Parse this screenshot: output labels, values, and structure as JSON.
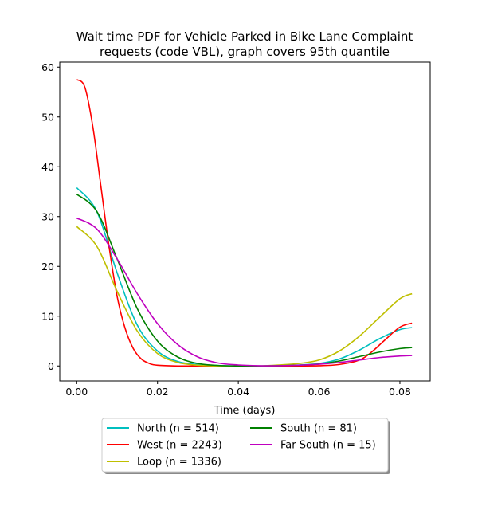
{
  "chart_data": {
    "type": "line",
    "title": "Wait time PDF for Vehicle Parked in Bike Lane Complaint",
    "subtitle": "requests (code VBL), graph covers 95th quantile",
    "xlabel": "Time (days)",
    "ylabel": "",
    "xlim": [
      -0.0042,
      0.0875
    ],
    "ylim": [
      -3,
      61
    ],
    "xticks": [
      "0.00",
      "0.02",
      "0.04",
      "0.06",
      "0.08"
    ],
    "yticks": [
      "0",
      "10",
      "20",
      "30",
      "40",
      "50",
      "60"
    ],
    "grid": false,
    "legend_position": "bottom-center",
    "series": [
      {
        "name": "North (n = 514)",
        "color": "#00bfbf",
        "x": [
          0,
          0.005,
          0.01,
          0.015,
          0.02,
          0.025,
          0.03,
          0.035,
          0.04,
          0.045,
          0.05,
          0.055,
          0.06,
          0.065,
          0.07,
          0.075,
          0.08,
          0.083
        ],
        "y": [
          35.8,
          31.0,
          18.7,
          8.2,
          3.0,
          0.9,
          0.3,
          0.1,
          0.0,
          0.0,
          0.1,
          0.2,
          0.5,
          1.4,
          3.2,
          5.5,
          7.3,
          7.7
        ]
      },
      {
        "name": "West (n = 2243)",
        "color": "#ff0000",
        "x": [
          0,
          0.002,
          0.004,
          0.006,
          0.008,
          0.01,
          0.012,
          0.014,
          0.016,
          0.018,
          0.02,
          0.025,
          0.03,
          0.04,
          0.05,
          0.06,
          0.065,
          0.07,
          0.073,
          0.076,
          0.08,
          0.083
        ],
        "y": [
          57.5,
          56.0,
          48.0,
          36.0,
          24.0,
          14.0,
          7.5,
          3.5,
          1.4,
          0.5,
          0.15,
          0.0,
          0.0,
          0.0,
          0.0,
          0.05,
          0.3,
          1.2,
          2.8,
          5.0,
          7.8,
          8.6
        ]
      },
      {
        "name": "Loop (n = 1336)",
        "color": "#bfbf00",
        "x": [
          0,
          0.005,
          0.01,
          0.015,
          0.02,
          0.025,
          0.03,
          0.035,
          0.04,
          0.045,
          0.05,
          0.055,
          0.06,
          0.065,
          0.07,
          0.075,
          0.08,
          0.083
        ],
        "y": [
          28.0,
          24.0,
          15.0,
          7.0,
          2.5,
          0.7,
          0.15,
          0.0,
          0.0,
          0.0,
          0.2,
          0.5,
          1.2,
          3.0,
          6.0,
          9.8,
          13.5,
          14.5
        ]
      },
      {
        "name": "South (n = 81)",
        "color": "#008000",
        "x": [
          0,
          0.005,
          0.01,
          0.015,
          0.02,
          0.025,
          0.03,
          0.035,
          0.04,
          0.045,
          0.05,
          0.055,
          0.06,
          0.065,
          0.07,
          0.075,
          0.08,
          0.083
        ],
        "y": [
          34.5,
          31.0,
          21.5,
          11.5,
          5.0,
          1.8,
          0.5,
          0.1,
          0.0,
          0.0,
          0.05,
          0.15,
          0.4,
          1.0,
          1.9,
          2.8,
          3.5,
          3.7
        ]
      },
      {
        "name": "Far South (n = 15)",
        "color": "#bf00bf",
        "x": [
          0,
          0.005,
          0.01,
          0.015,
          0.02,
          0.025,
          0.03,
          0.035,
          0.04,
          0.045,
          0.05,
          0.055,
          0.06,
          0.065,
          0.07,
          0.075,
          0.08,
          0.083
        ],
        "y": [
          29.7,
          27.5,
          21.5,
          14.5,
          8.5,
          4.3,
          1.8,
          0.6,
          0.2,
          0.05,
          0.05,
          0.15,
          0.35,
          0.7,
          1.2,
          1.7,
          2.0,
          2.1
        ]
      }
    ]
  }
}
